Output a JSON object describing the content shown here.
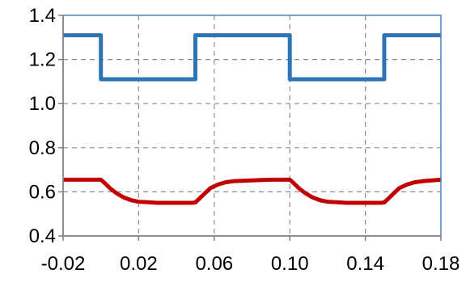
{
  "chart_data": {
    "type": "line",
    "title": "",
    "xlabel": "",
    "ylabel": "",
    "xlim": [
      -0.02,
      0.18
    ],
    "ylim": [
      0.4,
      1.4
    ],
    "x_ticks": [
      -0.02,
      0.02,
      0.06,
      0.1,
      0.14,
      0.18
    ],
    "x_tick_labels": [
      "-0.02",
      "0.02",
      "0.06",
      "0.10",
      "0.14",
      "0.18"
    ],
    "y_ticks": [
      0.4,
      0.6,
      0.8,
      1.0,
      1.2,
      1.4
    ],
    "y_tick_labels": [
      "0.4",
      "0.6",
      "0.8",
      "1.0",
      "1.2",
      "1.4"
    ],
    "grid": true,
    "legend": "none",
    "series": [
      {
        "color": "#2e75b6",
        "x": [
          -0.02,
          0.0,
          0.0,
          0.05,
          0.05,
          0.1,
          0.1,
          0.15,
          0.15,
          0.18
        ],
        "y": [
          1.31,
          1.31,
          1.11,
          1.11,
          1.31,
          1.31,
          1.11,
          1.11,
          1.31,
          1.31
        ]
      },
      {
        "color": "#c00000",
        "x": [
          -0.02,
          -0.01,
          0.0,
          0.002,
          0.005,
          0.008,
          0.012,
          0.016,
          0.02,
          0.03,
          0.04,
          0.048,
          0.05,
          0.052,
          0.055,
          0.058,
          0.062,
          0.066,
          0.07,
          0.08,
          0.09,
          0.098,
          0.1,
          0.102,
          0.105,
          0.108,
          0.112,
          0.116,
          0.12,
          0.13,
          0.14,
          0.148,
          0.15,
          0.152,
          0.155,
          0.158,
          0.162,
          0.166,
          0.17,
          0.18
        ],
        "y": [
          0.655,
          0.655,
          0.655,
          0.64,
          0.615,
          0.595,
          0.575,
          0.562,
          0.555,
          0.55,
          0.55,
          0.55,
          0.552,
          0.568,
          0.593,
          0.617,
          0.633,
          0.643,
          0.648,
          0.652,
          0.655,
          0.655,
          0.655,
          0.64,
          0.615,
          0.595,
          0.575,
          0.562,
          0.555,
          0.55,
          0.55,
          0.55,
          0.552,
          0.568,
          0.593,
          0.617,
          0.633,
          0.643,
          0.648,
          0.655
        ]
      }
    ]
  }
}
